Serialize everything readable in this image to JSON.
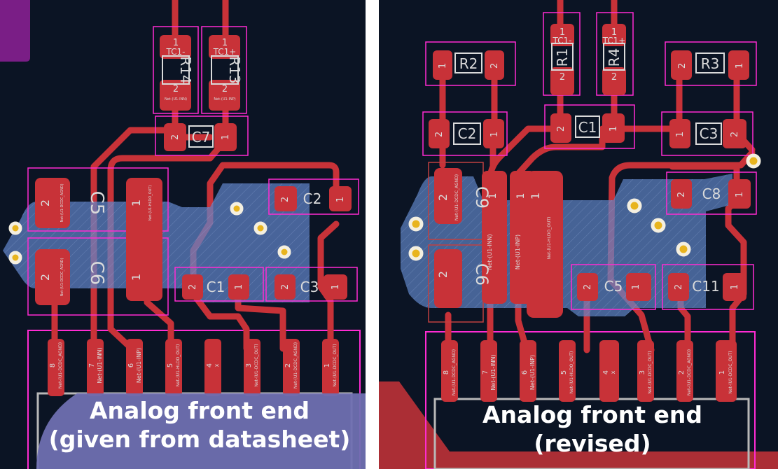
{
  "colors": {
    "board": "#0b1424",
    "trace": "#c83238",
    "zone": "#5f84c8",
    "outline": "#ff2bd2",
    "silk": "#dadada",
    "via": "#e8b41e",
    "caption_bg": "#6f6fb1",
    "divider": "#ffffff"
  },
  "left_panel": {
    "caption_line1": "Analog front end",
    "caption_line2": "(given from datasheet)",
    "resistors": [
      {
        "ref": "R14",
        "pad1": "1",
        "pad2": "2",
        "net": "TC1-",
        "pad2_net": "Net-(U1-INN)"
      },
      {
        "ref": "R13",
        "pad1": "1",
        "pad2": "2",
        "net": "TC1+",
        "pad2_net": "Net-(U1-INP)"
      }
    ],
    "capacitors": [
      {
        "ref": "C7",
        "pad1": "2",
        "pad2": "1"
      },
      {
        "ref": "C5",
        "pad1": "2",
        "pad2": "1",
        "pad1_net": "Net-(U1-DCDC_AGND)",
        "pad2_net": "Net-(U1-HLDO_OUT)"
      },
      {
        "ref": "C6",
        "pad1": "2",
        "pad2": "1",
        "pad1_net": "Net-(U1-DCDC_AGND)"
      },
      {
        "ref": "C2",
        "pad1": "2",
        "pad2": "1"
      },
      {
        "ref": "C1",
        "pad1": "2",
        "pad2": "1"
      },
      {
        "ref": "C3",
        "pad1": "2",
        "pad2": "1"
      }
    ],
    "ic_pins": [
      {
        "num": "8",
        "net": "Net-(U1-DCDC_AGND)"
      },
      {
        "num": "7",
        "net": "Net-(U1-INN)"
      },
      {
        "num": "6",
        "net": "Net-(U1-INP)"
      },
      {
        "num": "5",
        "net": "Net-(U1-HLDO_OUT)"
      },
      {
        "num": "4",
        "net": "x"
      },
      {
        "num": "3",
        "net": "Net-(U1-DCDC_OUT)"
      },
      {
        "num": "2",
        "net": "Net-(U1-DCDC_AGND)"
      },
      {
        "num": "1",
        "net": "Net-(U1-DCDC_OUT)"
      }
    ]
  },
  "right_panel": {
    "caption_line1": "Analog front end",
    "caption_line2": "(revised)",
    "resistors": [
      {
        "ref": "R2",
        "pad1": "1",
        "pad2": "2"
      },
      {
        "ref": "R1",
        "pad1": "1",
        "pad2": "2",
        "net": "TC1-"
      },
      {
        "ref": "R4",
        "pad1": "1",
        "pad2": "2",
        "net": "TC1+"
      },
      {
        "ref": "R3",
        "pad1": "2",
        "pad2": "1"
      }
    ],
    "capacitors": [
      {
        "ref": "C2",
        "pad1": "2",
        "pad2": "1"
      },
      {
        "ref": "C1",
        "pad1": "2",
        "pad2": "1"
      },
      {
        "ref": "C3",
        "pad1": "1",
        "pad2": "2"
      },
      {
        "ref": "C8",
        "pad1": "2",
        "pad2": "1"
      },
      {
        "ref": "C9",
        "pad1": "2",
        "pad2": "1",
        "pad1_net": "Net-(U1-DCDC_AGND)"
      },
      {
        "ref": "C6",
        "pad1": "2",
        "pad2": "1"
      },
      {
        "ref": "C5",
        "pad1": "2",
        "pad2": "1"
      },
      {
        "ref": "C11",
        "pad1": "2",
        "pad2": "1"
      }
    ],
    "long_pads": [
      {
        "num": "1",
        "net": "Net-(U1-INN)"
      },
      {
        "num": "1",
        "net": "Net-(U1-INP)"
      },
      {
        "num": "1",
        "net": "Net-(U1-HLDO_OUT)"
      }
    ],
    "ic_pins": [
      {
        "num": "8",
        "net": "Net-(U1-DCDC_AGND)"
      },
      {
        "num": "7",
        "net": "Net-(U1-INN)"
      },
      {
        "num": "6",
        "net": "Net-(U1-INP)"
      },
      {
        "num": "5",
        "net": "Net-(U1-HLDO_OUT)"
      },
      {
        "num": "4",
        "net": "x"
      },
      {
        "num": "3",
        "net": "Net-(U1-DCDC_OUT)"
      },
      {
        "num": "2",
        "net": "Net-(U1-DCDC_AGND)"
      },
      {
        "num": "1",
        "net": "Net-(U1-DCDC_OUT)"
      }
    ]
  }
}
